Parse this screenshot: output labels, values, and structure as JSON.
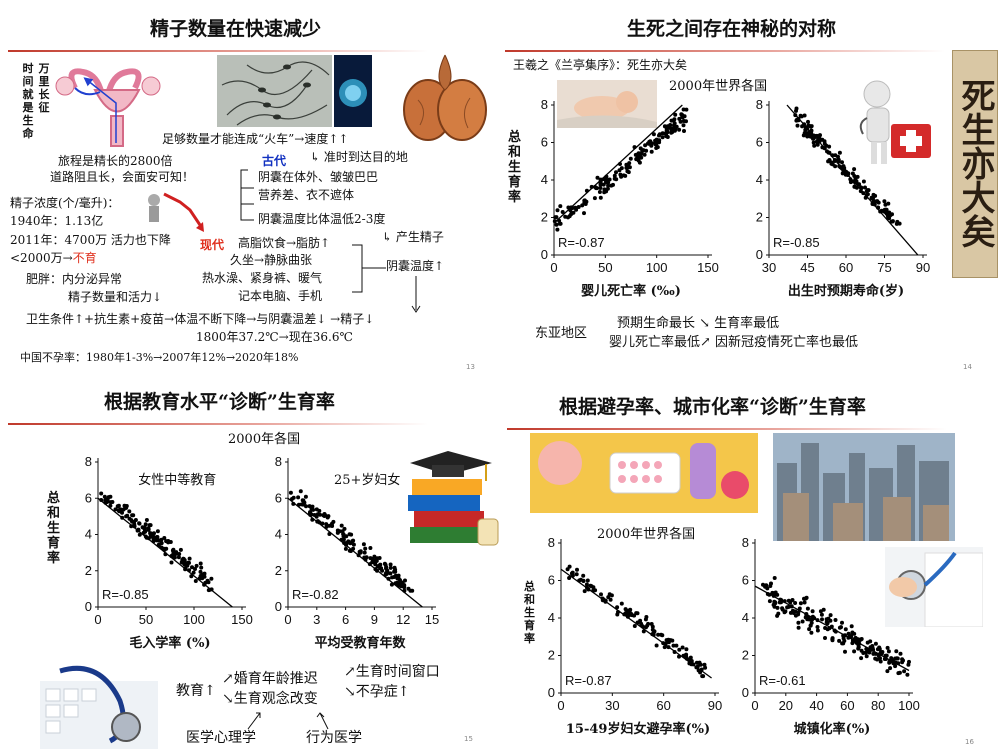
{
  "slide1": {
    "title": "精子数量在快速减少",
    "page": "13",
    "vertical_left": "时间就是生命",
    "vertical_right": "万里长征",
    "lines": {
      "fire": "足够数量才能连成“火车”→速度↑↑",
      "ontime": "↳ 准时到达目的地",
      "journey1": "旅程是精长的2800倍",
      "journey2": "道路阻且长，会面安可知！",
      "ancient": "古代",
      "a1": "阴囊在体外、皱皱巴巴",
      "a2": "营养差、衣不遮体",
      "a3": "阴囊温度比体温低2-3度",
      "a4": "↳ 产生精子",
      "conc": "精子浓度(个/毫升)：",
      "y1940": "1940年：1.13亿",
      "y2011": "2011年：4700万  活力也下降",
      "lt2000": "<2000万→",
      "infertile": "不育",
      "modern": "现代",
      "m1": "高脂饮食→脂肪↑",
      "m2": "久坐→静脉曲张",
      "m3": "热水澡、紧身裤、暖气",
      "m4": "记本电脑、手机",
      "scrotal": "阴囊温度↑",
      "obese1": "肥胖：内分泌异常",
      "obese2": "精子数量和活力↓",
      "hygiene": "卫生条件↑+抗生素+疫苗→体温不断下降→与阴囊温差↓ →精子↓",
      "temp": "1800年37.2℃→现在36.6℃",
      "infert_rate": "中国不孕率：1980年1-3%→2007年12%→2020年18%"
    }
  },
  "slide2": {
    "title": "生死之间存在神秘的对称",
    "page": "14",
    "quote": "王羲之《兰亭集序》：死生亦大矣",
    "subtitle": "2000年世界各国",
    "ylabel": "总和生育率",
    "calligraphy": "死生亦大矣",
    "ea_label": "东亚地区",
    "ea1": "预期生命最长 ↘ 生育率最低",
    "ea2": "婴儿死亡率最低↗ 因新冠疫情死亡率也最低"
  },
  "slide3": {
    "title": "根据教育水平“诊断”生育率",
    "page": "15",
    "subtitle": "2000年各国",
    "ylabel": "总和生育率",
    "edu": "教育↑",
    "c1": "↗婚育年龄推迟",
    "c2": "↘生育观念改变",
    "r1": "↗生育时间窗口",
    "r2": "↘不孕症↑",
    "b1": "医学心理学",
    "b2": "行为医学"
  },
  "slide4": {
    "title": "根据避孕率、城市化率“诊断”生育率",
    "page": "16",
    "subtitle": "2000年世界各国",
    "ylabel": "总和生育率"
  },
  "colors": {
    "accent_red": "#c0392b",
    "modern_red": "#e0301e",
    "ancient_blue": "#1030c0"
  },
  "chart_data": [
    {
      "id": "c2a",
      "type": "scatter",
      "xlabel": "婴儿死亡率 (‰)",
      "xlim": [
        0,
        150
      ],
      "ylim": [
        0,
        8
      ],
      "xticks": [
        0,
        50,
        100,
        150
      ],
      "yticks": [
        0,
        2,
        4,
        6,
        8
      ],
      "annotation": "R=-0.87",
      "trend": [
        [
          0,
          1.7
        ],
        [
          125,
          8
        ]
      ],
      "gen": {
        "n": 170,
        "xdist": [
          0,
          130
        ],
        "slope": 0.045,
        "b": 1.6,
        "noise": 0.9,
        "seed": 11
      }
    },
    {
      "id": "c2b",
      "type": "scatter",
      "xlabel": "出生时预期寿命(岁)",
      "xlim": [
        30,
        90
      ],
      "ylim": [
        0,
        8
      ],
      "xticks": [
        30,
        45,
        60,
        75,
        90
      ],
      "yticks": [
        0,
        2,
        4,
        6,
        8
      ],
      "annotation": "R=-0.85",
      "trend": [
        [
          37,
          8
        ],
        [
          88,
          0
        ]
      ],
      "gen": {
        "n": 170,
        "xdist": [
          40,
          82
        ],
        "slope": -0.145,
        "b": 13.2,
        "noise": 0.8,
        "seed": 23
      }
    },
    {
      "id": "c3a",
      "type": "scatter",
      "xlabel": "毛入学率 (%)",
      "xlim": [
        0,
        150
      ],
      "ylim": [
        0,
        8
      ],
      "xticks": [
        0,
        50,
        100,
        150
      ],
      "yticks": [
        0,
        2,
        4,
        6,
        8
      ],
      "annotation": "R=-0.85",
      "inner": "女性中等教育",
      "trend": [
        [
          0,
          6.0
        ],
        [
          140,
          0
        ]
      ],
      "gen": {
        "n": 150,
        "xdist": [
          3,
          120
        ],
        "slope": -0.042,
        "b": 6.3,
        "noise": 0.8,
        "seed": 37
      }
    },
    {
      "id": "c3b",
      "type": "scatter",
      "xlabel": "平均受教育年数",
      "xlim": [
        0,
        15
      ],
      "ylim": [
        0,
        8
      ],
      "xticks": [
        0,
        3,
        6,
        9,
        12,
        15
      ],
      "yticks": [
        0,
        2,
        4,
        6,
        8
      ],
      "annotation": "R=-0.82",
      "inner": "25+岁妇女",
      "trend": [
        [
          0,
          6.0
        ],
        [
          14,
          0
        ]
      ],
      "gen": {
        "n": 150,
        "xdist": [
          0.3,
          13
        ],
        "slope": -0.42,
        "b": 6.3,
        "noise": 0.85,
        "seed": 41
      }
    },
    {
      "id": "c4a",
      "type": "scatter",
      "xlabel": "15-49岁妇女避孕率(%)",
      "xlim": [
        0,
        90
      ],
      "ylim": [
        0,
        8
      ],
      "xticks": [
        0,
        30,
        60,
        90
      ],
      "yticks": [
        0,
        2,
        4,
        6,
        8
      ],
      "annotation": "R=-0.87",
      "trend": [
        [
          0,
          6.6
        ],
        [
          88,
          0.8
        ]
      ],
      "gen": {
        "n": 120,
        "xdist": [
          3,
          85
        ],
        "slope": -0.066,
        "b": 6.8,
        "noise": 0.7,
        "seed": 53
      }
    },
    {
      "id": "c4b",
      "type": "scatter",
      "xlabel": "城镇化率(%)",
      "xlim": [
        0,
        100
      ],
      "ylim": [
        0,
        8
      ],
      "xticks": [
        0,
        20,
        40,
        60,
        80,
        100
      ],
      "yticks": [
        0,
        2,
        4,
        6,
        8
      ],
      "annotation": "R=-0.61",
      "trend": [
        [
          0,
          5.7
        ],
        [
          100,
          1.2
        ]
      ],
      "gen": {
        "n": 200,
        "xdist": [
          5,
          100
        ],
        "slope": -0.045,
        "b": 5.7,
        "noise": 1.2,
        "seed": 67
      }
    }
  ]
}
